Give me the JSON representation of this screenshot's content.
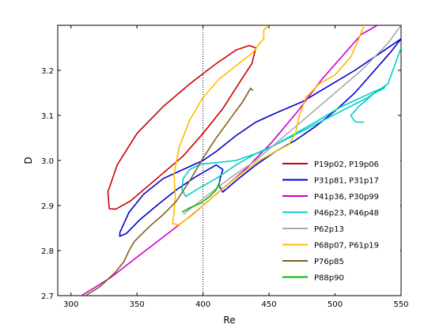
{
  "chart_data": {
    "type": "line",
    "xlabel": "Re",
    "ylabel": "D",
    "xlim": [
      290,
      550
    ],
    "ylim": [
      2.7,
      3.3
    ],
    "x_ticks": [
      300,
      350,
      400,
      450,
      500,
      550
    ],
    "y_ticks": [
      2.7,
      2.8,
      2.9,
      3.0,
      3.1,
      3.2
    ],
    "reference_line": {
      "x": 400,
      "style": "dotted",
      "color": "#000000"
    },
    "legend_position": "lower-right",
    "grid": false,
    "series": [
      {
        "name": "P19p02, P19p06",
        "color": "#cc0000",
        "points": [
          [
            440,
            3.25
          ],
          [
            435,
            3.255
          ],
          [
            425,
            3.245
          ],
          [
            410,
            3.215
          ],
          [
            390,
            3.17
          ],
          [
            370,
            3.12
          ],
          [
            350,
            3.06
          ],
          [
            335,
            2.99
          ],
          [
            328,
            2.93
          ],
          [
            329,
            2.893
          ],
          [
            334,
            2.892
          ],
          [
            345,
            2.91
          ],
          [
            365,
            2.96
          ],
          [
            385,
            3.01
          ],
          [
            400,
            3.06
          ],
          [
            415,
            3.115
          ],
          [
            428,
            3.175
          ],
          [
            437,
            3.215
          ],
          [
            440,
            3.25
          ]
        ]
      },
      {
        "name": "P31p81, P31p17",
        "color": "#0000cc",
        "points": [
          [
            550,
            3.27
          ],
          [
            535,
            3.24
          ],
          [
            515,
            3.2
          ],
          [
            495,
            3.165
          ],
          [
            475,
            3.13
          ],
          [
            455,
            3.105
          ],
          [
            440,
            3.085
          ],
          [
            425,
            3.055
          ],
          [
            410,
            3.02
          ],
          [
            400,
            3.0
          ],
          [
            385,
            2.98
          ],
          [
            370,
            2.96
          ],
          [
            355,
            2.925
          ],
          [
            344,
            2.885
          ],
          [
            337,
            2.84
          ],
          [
            337,
            2.832
          ],
          [
            342,
            2.838
          ],
          [
            352,
            2.868
          ],
          [
            365,
            2.9
          ],
          [
            380,
            2.935
          ],
          [
            395,
            2.965
          ],
          [
            410,
            2.99
          ],
          [
            415,
            2.98
          ],
          [
            413,
            2.96
          ],
          [
            412,
            2.945
          ],
          [
            415,
            2.93
          ],
          [
            425,
            2.955
          ],
          [
            440,
            2.99
          ],
          [
            455,
            3.02
          ],
          [
            470,
            3.045
          ],
          [
            485,
            3.075
          ],
          [
            500,
            3.11
          ],
          [
            515,
            3.15
          ],
          [
            530,
            3.2
          ],
          [
            542,
            3.24
          ],
          [
            550,
            3.27
          ]
        ]
      },
      {
        "name": "P41p36, P30p99",
        "color": "#cc00cc",
        "points": [
          [
            308,
            2.7
          ],
          [
            330,
            2.74
          ],
          [
            352,
            2.79
          ],
          [
            372,
            2.835
          ],
          [
            392,
            2.88
          ],
          [
            412,
            2.93
          ],
          [
            432,
            2.98
          ],
          [
            452,
            3.04
          ],
          [
            472,
            3.11
          ],
          [
            490,
            3.18
          ],
          [
            505,
            3.23
          ],
          [
            520,
            3.28
          ],
          [
            532,
            3.3
          ]
        ]
      },
      {
        "name": "P46p23, P46p48",
        "color": "#00cccc",
        "points": [
          [
            522,
            3.085
          ],
          [
            516,
            3.085
          ],
          [
            514,
            3.09
          ],
          [
            512,
            3.1
          ],
          [
            518,
            3.12
          ],
          [
            530,
            3.15
          ],
          [
            537,
            3.16
          ],
          [
            538,
            3.165
          ],
          [
            535,
            3.16
          ],
          [
            520,
            3.14
          ],
          [
            505,
            3.12
          ],
          [
            488,
            3.09
          ],
          [
            470,
            3.06
          ],
          [
            455,
            3.035
          ],
          [
            440,
            3.015
          ],
          [
            425,
            2.99
          ],
          [
            410,
            2.96
          ],
          [
            395,
            2.935
          ],
          [
            387,
            2.92
          ],
          [
            384,
            2.935
          ],
          [
            385,
            2.96
          ],
          [
            390,
            2.98
          ],
          [
            398,
            2.992
          ],
          [
            410,
            2.995
          ],
          [
            425,
            3.0
          ],
          [
            445,
            3.02
          ],
          [
            465,
            3.05
          ],
          [
            485,
            3.08
          ],
          [
            505,
            3.11
          ],
          [
            525,
            3.14
          ],
          [
            540,
            3.17
          ],
          [
            550,
            3.25
          ]
        ]
      },
      {
        "name": "P62p13",
        "color": "#aaaaaa",
        "points": [
          [
            385,
            2.88
          ],
          [
            400,
            2.915
          ],
          [
            420,
            2.96
          ],
          [
            440,
            3.0
          ],
          [
            460,
            3.05
          ],
          [
            480,
            3.1
          ],
          [
            500,
            3.15
          ],
          [
            520,
            3.2
          ],
          [
            540,
            3.26
          ],
          [
            550,
            3.3
          ]
        ]
      },
      {
        "name": "P68p07, P61p19",
        "color": "#ffbb00",
        "points": [
          [
            450,
            3.3
          ],
          [
            446,
            3.29
          ],
          [
            446,
            3.27
          ],
          [
            443,
            3.26
          ],
          [
            438,
            3.24
          ],
          [
            425,
            3.21
          ],
          [
            412,
            3.18
          ],
          [
            400,
            3.14
          ],
          [
            390,
            3.09
          ],
          [
            382,
            3.03
          ],
          [
            378,
            2.97
          ],
          [
            379,
            2.92
          ],
          [
            378,
            2.885
          ],
          [
            377,
            2.86
          ],
          [
            382,
            2.857
          ],
          [
            400,
            2.9
          ],
          [
            420,
            2.95
          ],
          [
            440,
            2.995
          ],
          [
            455,
            3.02
          ],
          [
            465,
            3.035
          ],
          [
            470,
            3.06
          ],
          [
            473,
            3.1
          ],
          [
            478,
            3.14
          ],
          [
            488,
            3.17
          ],
          [
            500,
            3.19
          ],
          [
            512,
            3.23
          ],
          [
            518,
            3.27
          ],
          [
            522,
            3.3
          ]
        ]
      },
      {
        "name": "P76p85",
        "color": "#806020",
        "points": [
          [
            311,
            2.7
          ],
          [
            322,
            2.72
          ],
          [
            333,
            2.75
          ],
          [
            340,
            2.775
          ],
          [
            344,
            2.8
          ],
          [
            348,
            2.82
          ],
          [
            353,
            2.835
          ],
          [
            360,
            2.855
          ],
          [
            370,
            2.88
          ],
          [
            380,
            2.91
          ],
          [
            390,
            2.955
          ],
          [
            400,
            3.005
          ],
          [
            410,
            3.05
          ],
          [
            420,
            3.09
          ],
          [
            430,
            3.13
          ],
          [
            436,
            3.16
          ],
          [
            438,
            3.155
          ]
        ]
      },
      {
        "name": "P88p90",
        "color": "#00bb00",
        "points": [
          [
            384,
            2.885
          ],
          [
            390,
            2.895
          ],
          [
            398,
            2.905
          ],
          [
            405,
            2.92
          ],
          [
            410,
            2.935
          ],
          [
            413,
            2.955
          ]
        ]
      }
    ]
  }
}
